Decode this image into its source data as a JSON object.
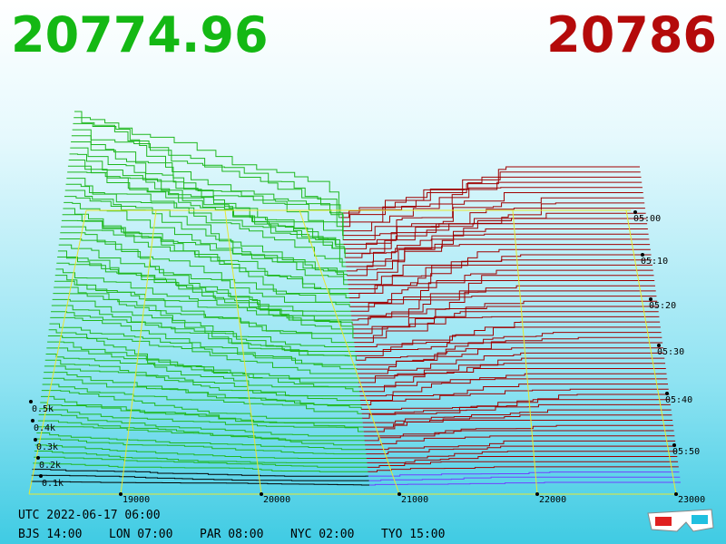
{
  "header": {
    "bid": "20774.96",
    "ask": "20786"
  },
  "price_axis": {
    "ticks": [
      "19000",
      "20000",
      "21000",
      "22000",
      "23000"
    ]
  },
  "time_axis": {
    "ticks": [
      "05:00",
      "05:10",
      "05:20",
      "05:30",
      "05:40",
      "05:50"
    ]
  },
  "depth_axis": {
    "ticks": [
      "0.5k",
      "0.4k",
      "0.3k",
      "0.2k",
      "0.1k"
    ]
  },
  "footer": {
    "utc": "UTC 2022-06-17 06:00",
    "zones": [
      "BJS 14:00",
      "LON 07:00",
      "PAR 08:00",
      "NYC 02:00",
      "TYO 15:00"
    ]
  }
}
